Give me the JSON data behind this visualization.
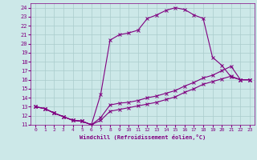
{
  "xlabel": "Windchill (Refroidissement éolien,°C)",
  "bg_color": "#cce8e8",
  "line_color": "#800080",
  "grid_color": "#aacccc",
  "xlim": [
    -0.5,
    23.5
  ],
  "ylim": [
    11,
    24.5
  ],
  "xticks": [
    0,
    1,
    2,
    3,
    4,
    5,
    6,
    7,
    8,
    9,
    10,
    11,
    12,
    13,
    14,
    15,
    16,
    17,
    18,
    19,
    20,
    21,
    22,
    23
  ],
  "yticks": [
    11,
    12,
    13,
    14,
    15,
    16,
    17,
    18,
    19,
    20,
    21,
    22,
    23,
    24
  ],
  "line1_x": [
    0,
    1,
    2,
    3,
    4,
    5,
    6,
    7,
    8,
    9,
    10,
    11,
    12,
    13,
    14,
    15,
    16,
    17,
    18,
    19,
    20,
    21,
    22,
    23
  ],
  "line1_y": [
    13.0,
    12.8,
    12.3,
    11.9,
    11.5,
    11.4,
    11.0,
    14.4,
    20.4,
    21.0,
    21.2,
    21.5,
    22.8,
    23.2,
    23.7,
    24.0,
    23.8,
    23.2,
    22.8,
    18.5,
    17.6,
    16.3,
    16.0,
    16.0
  ],
  "line2_x": [
    0,
    1,
    2,
    3,
    4,
    5,
    6,
    7,
    8,
    9,
    10,
    11,
    12,
    13,
    14,
    15,
    16,
    17,
    18,
    19,
    20,
    21,
    22,
    23
  ],
  "line2_y": [
    13.0,
    12.8,
    12.3,
    11.9,
    11.5,
    11.4,
    11.0,
    11.8,
    13.2,
    13.4,
    13.5,
    13.7,
    14.0,
    14.2,
    14.5,
    14.8,
    15.3,
    15.7,
    16.2,
    16.5,
    17.0,
    17.5,
    16.0,
    16.0
  ],
  "line3_x": [
    0,
    1,
    2,
    3,
    4,
    5,
    6,
    7,
    8,
    9,
    10,
    11,
    12,
    13,
    14,
    15,
    16,
    17,
    18,
    19,
    20,
    21,
    22,
    23
  ],
  "line3_y": [
    13.0,
    12.8,
    12.3,
    11.9,
    11.5,
    11.4,
    11.0,
    11.5,
    12.5,
    12.7,
    12.9,
    13.1,
    13.3,
    13.5,
    13.8,
    14.1,
    14.6,
    15.0,
    15.5,
    15.8,
    16.1,
    16.4,
    16.0,
    16.0
  ]
}
